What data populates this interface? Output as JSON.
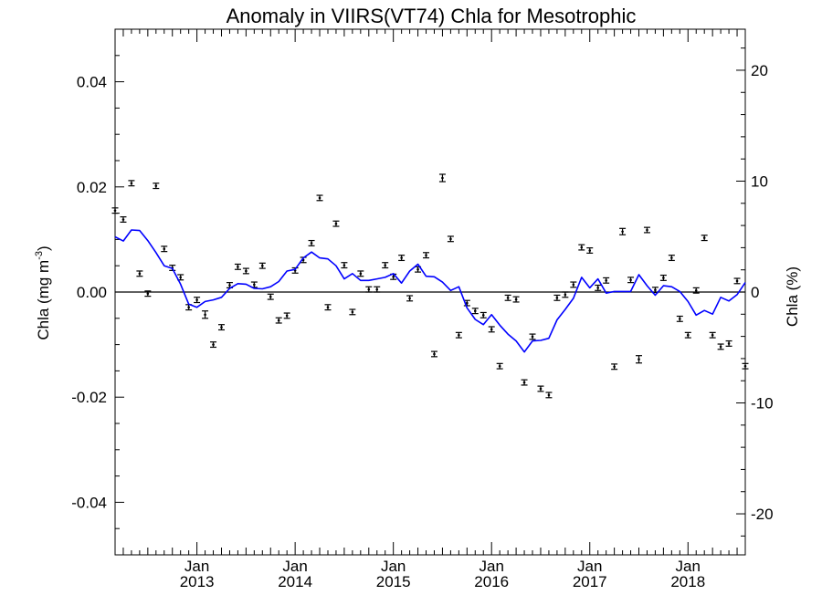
{
  "chart_data": {
    "type": "line",
    "title": "Anomaly in VIIRS(VT74) Chla for Mesotrophic",
    "ylabel_left": "Chla (mg m",
    "ylabel_left_sup": "-3",
    "ylabel_left_close": ")",
    "ylabel_right": "Chla (%)",
    "xlabel": "",
    "ylim": [
      -0.05,
      0.05
    ],
    "ylim_right": [
      -23.7,
      23.7
    ],
    "xlim": [
      "2012-03",
      "2018-08"
    ],
    "grid": false,
    "left_ticks": [
      {
        "value": 0.04,
        "label": "0.04"
      },
      {
        "value": 0.02,
        "label": "0.02"
      },
      {
        "value": 0.0,
        "label": "0.00"
      },
      {
        "value": -0.02,
        "label": "-0.02"
      },
      {
        "value": -0.04,
        "label": "-0.04"
      }
    ],
    "right_ticks": [
      {
        "value": 20,
        "label": "20"
      },
      {
        "value": 10,
        "label": "10"
      },
      {
        "value": 0,
        "label": "0"
      },
      {
        "value": -10,
        "label": "-10"
      },
      {
        "value": -20,
        "label": "-20"
      }
    ],
    "x_ticks": [
      {
        "date": "2013-01",
        "month": "Jan",
        "year": "2013"
      },
      {
        "date": "2014-01",
        "month": "Jan",
        "year": "2014"
      },
      {
        "date": "2015-01",
        "month": "Jan",
        "year": "2015"
      },
      {
        "date": "2016-01",
        "month": "Jan",
        "year": "2016"
      },
      {
        "date": "2017-01",
        "month": "Jan",
        "year": "2017"
      },
      {
        "date": "2018-01",
        "month": "Jan",
        "year": "2018"
      }
    ],
    "zero_line": 0,
    "series": [
      {
        "kind": "points_with_error_bars",
        "color": "#000000",
        "x": [
          "2012-03",
          "2012-04",
          "2012-05",
          "2012-06",
          "2012-07",
          "2012-08",
          "2012-09",
          "2012-10",
          "2012-11",
          "2012-12",
          "2013-01",
          "2013-02",
          "2013-03",
          "2013-04",
          "2013-05",
          "2013-06",
          "2013-07",
          "2013-08",
          "2013-09",
          "2013-10",
          "2013-11",
          "2013-12",
          "2014-01",
          "2014-02",
          "2014-03",
          "2014-04",
          "2014-05",
          "2014-06",
          "2014-07",
          "2014-08",
          "2014-09",
          "2014-10",
          "2014-11",
          "2014-12",
          "2015-01",
          "2015-02",
          "2015-03",
          "2015-04",
          "2015-05",
          "2015-06",
          "2015-07",
          "2015-08",
          "2015-09",
          "2015-10",
          "2015-11",
          "2015-12",
          "2016-01",
          "2016-02",
          "2016-03",
          "2016-04",
          "2016-05",
          "2016-06",
          "2016-07",
          "2016-08",
          "2016-09",
          "2016-10",
          "2016-11",
          "2016-12",
          "2017-01",
          "2017-02",
          "2017-03",
          "2017-04",
          "2017-05",
          "2017-06",
          "2017-07",
          "2017-08",
          "2017-09",
          "2017-10",
          "2017-11",
          "2017-12",
          "2018-01",
          "2018-02",
          "2018-03",
          "2018-04",
          "2018-05",
          "2018-06",
          "2018-07",
          "2018-08"
        ],
        "y": [
          0.0155,
          0.0138,
          0.0207,
          0.0035,
          -0.0003,
          0.0202,
          0.0082,
          0.0046,
          0.0028,
          -0.0029,
          -0.0015,
          -0.0043,
          -0.01,
          -0.0067,
          0.0013,
          0.0048,
          0.004,
          0.0014,
          0.005,
          -0.0009,
          -0.0054,
          -0.0045,
          0.0041,
          0.0061,
          0.0093,
          0.0179,
          -0.0029,
          0.013,
          0.0051,
          -0.0038,
          0.0035,
          0.0005,
          0.0005,
          0.0051,
          0.0029,
          0.0065,
          -0.0012,
          0.0043,
          0.007,
          -0.0118,
          0.0217,
          0.0101,
          -0.0082,
          -0.0021,
          -0.0036,
          -0.0044,
          -0.0071,
          -0.0141,
          -0.0011,
          -0.0014,
          -0.0172,
          -0.0085,
          -0.0184,
          -0.0196,
          -0.0011,
          -0.0005,
          0.0014,
          0.0085,
          0.0079,
          0.0008,
          0.0022,
          -0.0142,
          0.0115,
          0.0023,
          -0.0128,
          0.0118,
          0.0004,
          0.0027,
          0.0065,
          -0.0051,
          -0.0082,
          0.0003,
          0.0103,
          -0.0082,
          -0.0104,
          -0.0098,
          0.0021,
          -0.0141
        ],
        "err": [
          0.0005,
          0.0005,
          0.0005,
          0.0005,
          0.0005,
          0.0005,
          0.0005,
          0.0005,
          0.0005,
          0.0005,
          0.0005,
          0.0007,
          0.0005,
          0.0005,
          0.0005,
          0.0005,
          0.0005,
          0.0005,
          0.0005,
          0.0005,
          0.0005,
          0.0005,
          0.0005,
          0.0005,
          0.0005,
          0.0005,
          0.0005,
          0.0005,
          0.0005,
          0.0005,
          0.0005,
          0.0005,
          0.0005,
          0.0005,
          0.0005,
          0.0005,
          0.0005,
          0.0005,
          0.0005,
          0.0005,
          0.0007,
          0.0005,
          0.0005,
          0.0005,
          0.0005,
          0.0005,
          0.0005,
          0.0005,
          0.0005,
          0.0005,
          0.0005,
          0.0005,
          0.0005,
          0.0005,
          0.0005,
          0.0005,
          0.0005,
          0.0005,
          0.0005,
          0.0005,
          0.0005,
          0.0005,
          0.0006,
          0.0005,
          0.0007,
          0.0005,
          0.0005,
          0.0005,
          0.0005,
          0.0005,
          0.0005,
          0.0005,
          0.0005,
          0.0005,
          0.0005,
          0.0005,
          0.0005,
          0.0005
        ]
      },
      {
        "kind": "line",
        "color": "#0000ff",
        "x": [
          "2012-03",
          "2012-04",
          "2012-05",
          "2012-06",
          "2012-07",
          "2012-08",
          "2012-09",
          "2012-10",
          "2012-11",
          "2012-12",
          "2013-01",
          "2013-02",
          "2013-03",
          "2013-04",
          "2013-05",
          "2013-06",
          "2013-07",
          "2013-08",
          "2013-09",
          "2013-10",
          "2013-11",
          "2013-12",
          "2014-01",
          "2014-02",
          "2014-03",
          "2014-04",
          "2014-05",
          "2014-06",
          "2014-07",
          "2014-08",
          "2014-09",
          "2014-10",
          "2014-11",
          "2014-12",
          "2015-01",
          "2015-02",
          "2015-03",
          "2015-04",
          "2015-05",
          "2015-06",
          "2015-07",
          "2015-08",
          "2015-09",
          "2015-10",
          "2015-11",
          "2015-12",
          "2016-01",
          "2016-02",
          "2016-03",
          "2016-04",
          "2016-05",
          "2016-06",
          "2016-07",
          "2016-08",
          "2016-09",
          "2016-10",
          "2016-11",
          "2016-12",
          "2017-01",
          "2017-02",
          "2017-03",
          "2017-04",
          "2017-05",
          "2017-06",
          "2017-07",
          "2017-08",
          "2017-09",
          "2017-10",
          "2017-11",
          "2017-12",
          "2018-01",
          "2018-02",
          "2018-03",
          "2018-04",
          "2018-05",
          "2018-06",
          "2018-07",
          "2018-08"
        ],
        "y": [
          0.0105,
          0.0097,
          0.0118,
          0.0117,
          0.0098,
          0.0075,
          0.005,
          0.0045,
          0.0015,
          -0.0023,
          -0.0029,
          -0.0018,
          -0.0015,
          -0.001,
          0.0007,
          0.0016,
          0.0015,
          0.0007,
          0.0006,
          0.001,
          0.002,
          0.004,
          0.0043,
          0.0065,
          0.0076,
          0.0065,
          0.0063,
          0.005,
          0.0025,
          0.0035,
          0.0022,
          0.0022,
          0.0025,
          0.0028,
          0.0035,
          0.0017,
          0.004,
          0.0053,
          0.003,
          0.0029,
          0.0019,
          0.0003,
          0.001,
          -0.003,
          -0.0052,
          -0.0062,
          -0.0043,
          -0.0063,
          -0.008,
          -0.0093,
          -0.0114,
          -0.0093,
          -0.0092,
          -0.0088,
          -0.0053,
          -0.0033,
          -0.0012,
          0.0028,
          0.0008,
          0.0025,
          -0.0002,
          0.0001,
          0.0001,
          0.0001,
          0.0033,
          0.0012,
          -0.0006,
          0.0012,
          0.001,
          0.0001,
          -0.0018,
          -0.0044,
          -0.0035,
          -0.0042,
          -0.001,
          -0.0017,
          -0.0005,
          0.0018
        ]
      }
    ]
  }
}
